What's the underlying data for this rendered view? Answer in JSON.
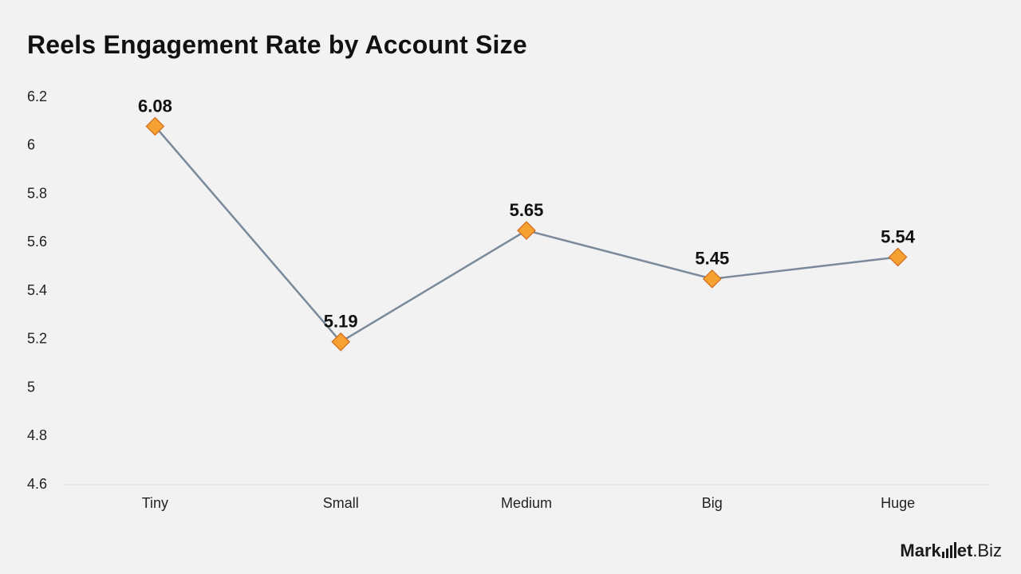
{
  "chart_data": {
    "type": "line",
    "title": "Reels Engagement Rate by Account Size",
    "categories": [
      "Tiny",
      "Small",
      "Medium",
      "Big",
      "Huge"
    ],
    "series": [
      {
        "values": [
          6.08,
          5.19,
          5.65,
          5.45,
          5.54
        ],
        "color": "#7a8a9a",
        "marker": "diamond",
        "marker_color": "#f5a232",
        "marker_edge_color": "#d46a1a"
      }
    ],
    "data_labels": [
      "6.08",
      "5.19",
      "5.65",
      "5.45",
      "5.54"
    ],
    "ylim": [
      4.6,
      6.2
    ],
    "yticks": [
      "6.2",
      "6",
      "5.8",
      "5.6",
      "5.4",
      "5.2",
      "5",
      "4.8",
      "4.6"
    ],
    "xlabel": "",
    "ylabel": "",
    "grid": false,
    "legend": "none"
  },
  "brand": {
    "part1": "Mark",
    "part2": "et",
    "part3": ".Biz"
  }
}
